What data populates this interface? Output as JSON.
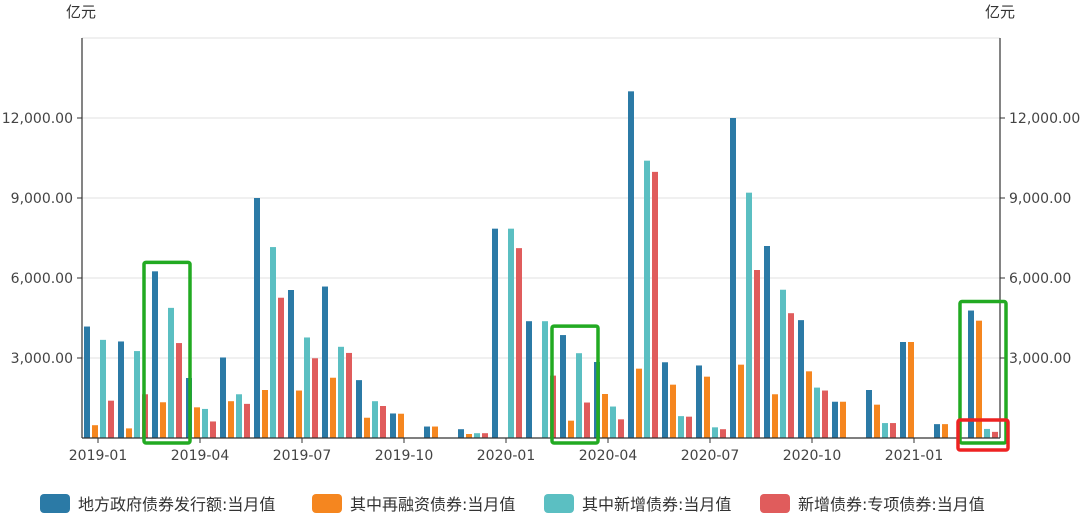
{
  "chart_data": {
    "type": "bar",
    "left_unit": "亿元",
    "right_unit": "亿元",
    "y_ticks": [
      "3,000.00",
      "6,000.00",
      "9,000.00",
      "12,000.00"
    ],
    "y_tick_values": [
      3000,
      6000,
      9000,
      12000
    ],
    "ylim": [
      0,
      15000
    ],
    "grid": true,
    "legend_position": "bottom",
    "x_tick_labels": [
      "2019-01",
      "2019-04",
      "2019-07",
      "2019-10",
      "2020-01",
      "2020-04",
      "2020-07",
      "2020-10",
      "2021-01"
    ],
    "x_tick_indices": [
      0,
      3,
      6,
      9,
      12,
      15,
      18,
      21,
      24
    ],
    "categories": [
      "2019-01",
      "2019-02",
      "2019-03",
      "2019-04",
      "2019-05",
      "2019-06",
      "2019-07",
      "2019-08",
      "2019-09",
      "2019-10",
      "2019-11",
      "2019-12",
      "2020-01",
      "2020-02",
      "2020-03",
      "2020-04",
      "2020-05",
      "2020-06",
      "2020-07",
      "2020-08",
      "2020-09",
      "2020-10",
      "2020-11",
      "2020-12",
      "2021-01",
      "2021-02",
      "2021-03"
    ],
    "series": [
      {
        "name": "地方政府债券发行额:当月值",
        "color": "#2b7aa6",
        "values": [
          4180,
          3620,
          6250,
          2250,
          3020,
          9000,
          5550,
          5680,
          2170,
          920,
          430,
          330,
          7850,
          4380,
          3860,
          2850,
          13000,
          2840,
          2720,
          12000,
          7200,
          4420,
          1360,
          1800,
          3600,
          520,
          4780
        ]
      },
      {
        "name": "其中再融资债券:当月值",
        "color": "#f5861f",
        "values": [
          480,
          360,
          1340,
          1150,
          1380,
          1800,
          1780,
          2260,
          760,
          910,
          430,
          150,
          0,
          0,
          650,
          1650,
          2600,
          2000,
          2300,
          2750,
          1640,
          2500,
          1360,
          1250,
          3600,
          520,
          4400
        ]
      },
      {
        "name": "其中新增债券:当月值",
        "color": "#5bbfc2",
        "values": [
          3680,
          3260,
          4880,
          1090,
          1640,
          7160,
          3770,
          3420,
          1380,
          0,
          0,
          180,
          7850,
          4380,
          3180,
          1180,
          10400,
          820,
          400,
          9200,
          5560,
          1890,
          0,
          560,
          0,
          0,
          340
        ]
      },
      {
        "name": "新增债券:专项债券:当月值",
        "color": "#e05c5c",
        "values": [
          1400,
          1640,
          3560,
          620,
          1280,
          5260,
          2990,
          3190,
          1200,
          0,
          0,
          180,
          7120,
          2340,
          1330,
          700,
          9980,
          800,
          330,
          6300,
          4680,
          1780,
          0,
          560,
          0,
          0,
          230
        ]
      }
    ],
    "annotations": [
      {
        "shape": "rectangle",
        "color": "#22aa22",
        "from_index": 2,
        "to_index": 2
      },
      {
        "shape": "rectangle",
        "color": "#22aa22",
        "from_index": 14,
        "to_index": 14
      },
      {
        "shape": "rectangle",
        "color": "#22aa22",
        "from_index": 26,
        "to_index": 26
      },
      {
        "shape": "rectangle",
        "color": "#ee2222",
        "from_index": 26,
        "to_index": 26
      }
    ]
  }
}
